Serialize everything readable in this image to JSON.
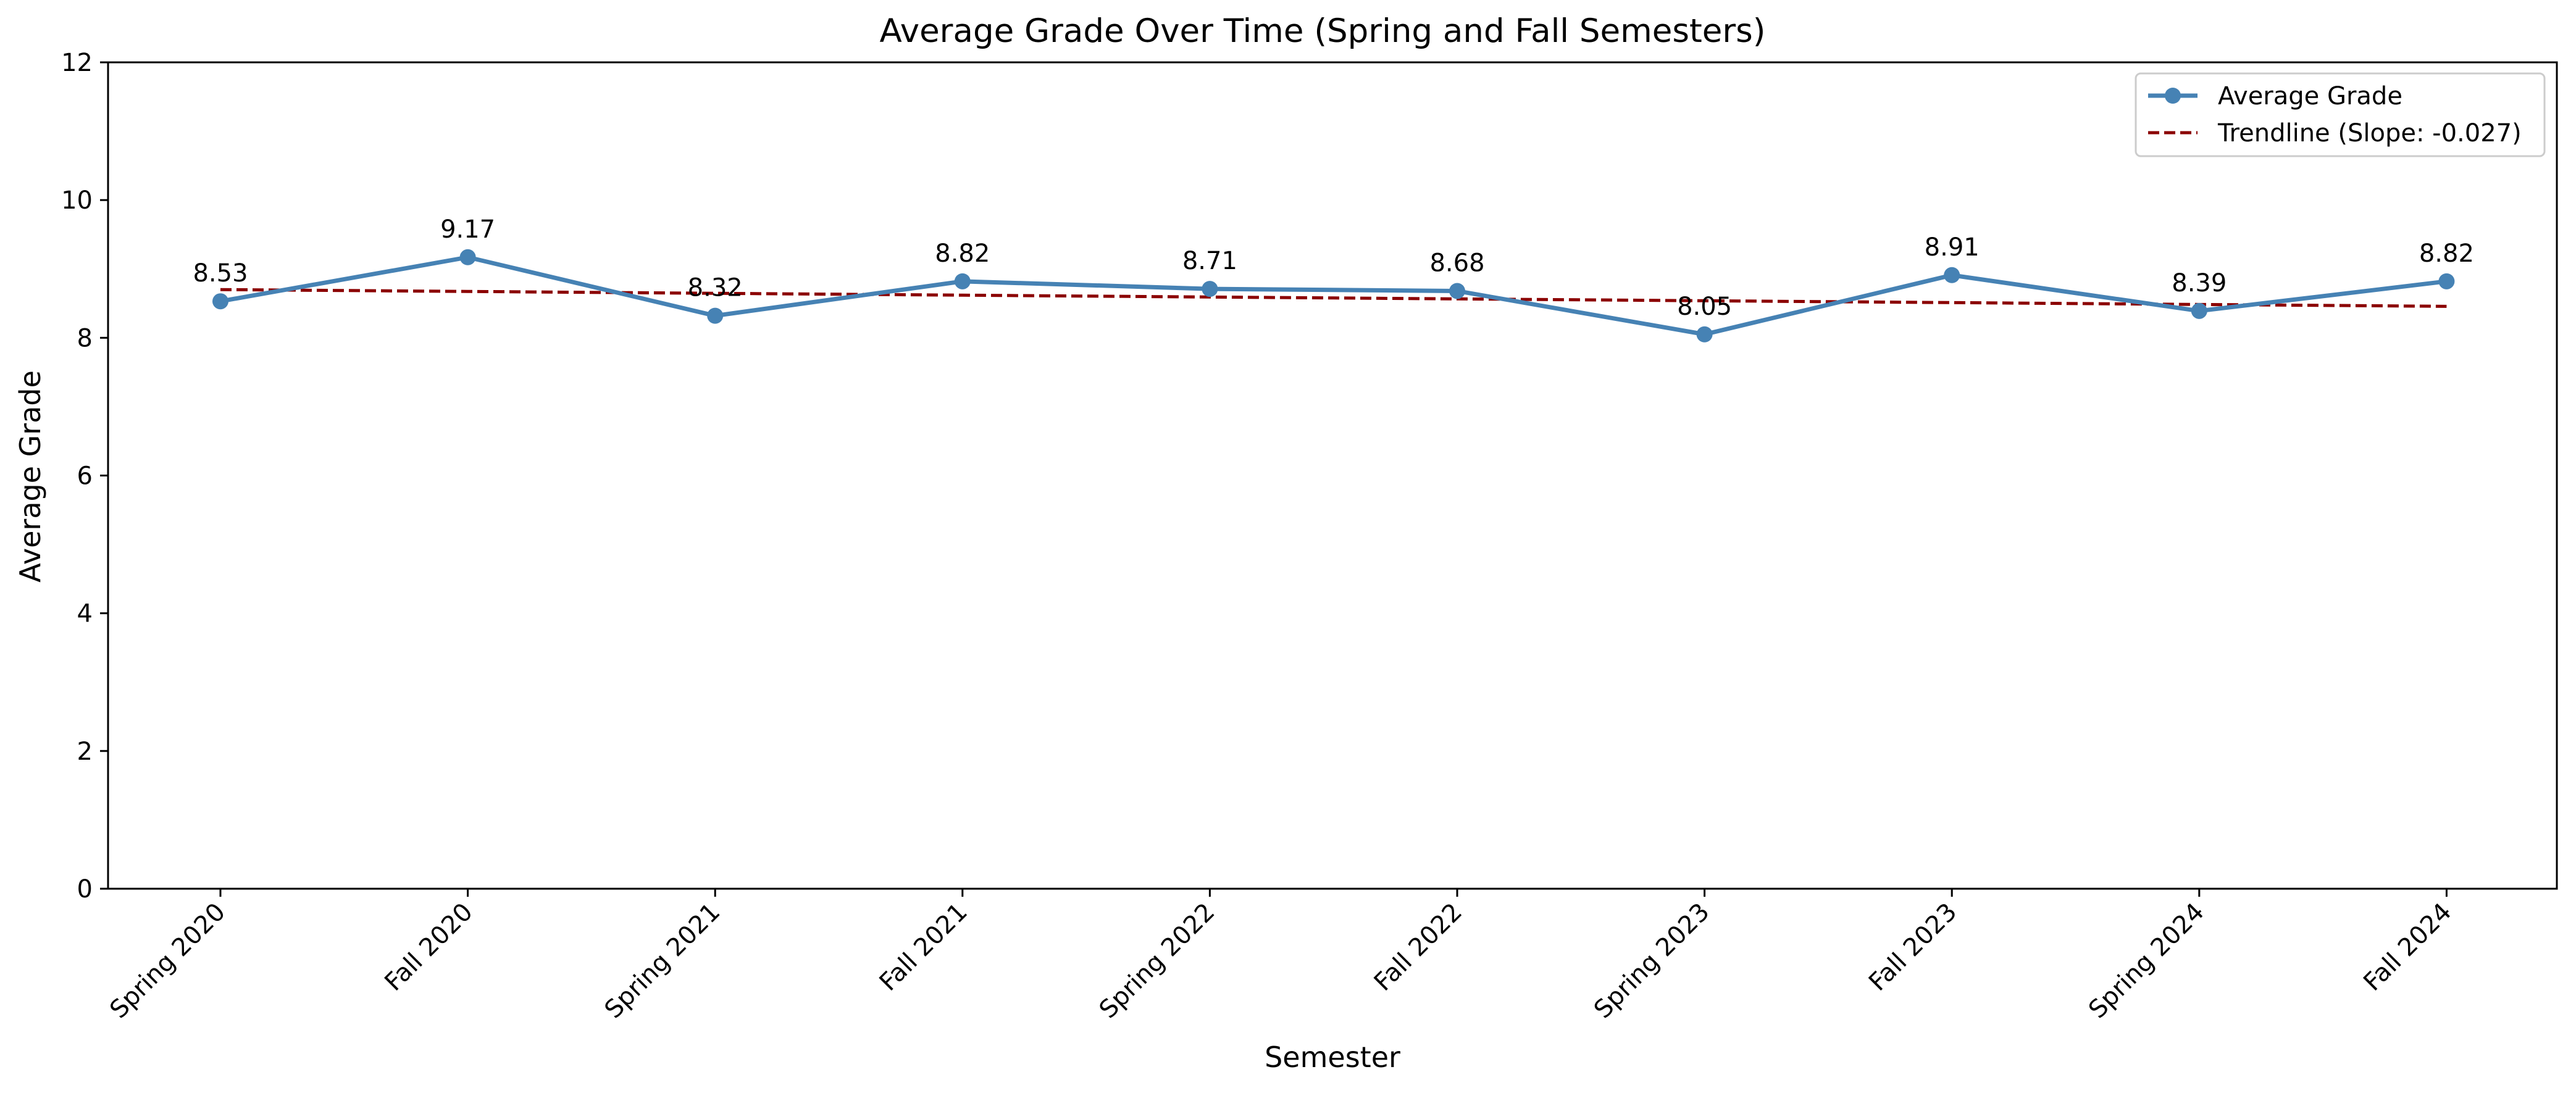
{
  "chart_data": {
    "type": "line",
    "title": "Average Grade Over Time (Spring and Fall Semesters)",
    "xlabel": "Semester",
    "ylabel": "Average Grade",
    "categories": [
      "Spring 2020",
      "Fall 2020",
      "Spring 2021",
      "Fall 2021",
      "Spring 2022",
      "Fall 2022",
      "Spring 2023",
      "Fall 2023",
      "Spring 2024",
      "Fall 2024"
    ],
    "series": [
      {
        "name": "Average Grade",
        "values": [
          8.53,
          9.17,
          8.32,
          8.82,
          8.71,
          8.68,
          8.05,
          8.91,
          8.39,
          8.82
        ],
        "color": "#4682b4",
        "style": "solid",
        "marker": "circle"
      },
      {
        "name": "Trendline (Slope: -0.027)",
        "values": [
          8.7,
          8.673,
          8.646,
          8.619,
          8.592,
          8.565,
          8.538,
          8.511,
          8.484,
          8.457
        ],
        "color": "#8b0000",
        "style": "dashed"
      }
    ],
    "data_labels": [
      "8.53",
      "9.17",
      "8.32",
      "8.82",
      "8.71",
      "8.68",
      "8.05",
      "8.91",
      "8.39",
      "8.82"
    ],
    "yticks": [
      "0",
      "2",
      "4",
      "6",
      "8",
      "10",
      "12"
    ],
    "ytick_values": [
      0,
      2,
      4,
      6,
      8,
      10,
      12
    ],
    "ylim": [
      0,
      12
    ],
    "grid": false,
    "legend_position": "top-right"
  }
}
